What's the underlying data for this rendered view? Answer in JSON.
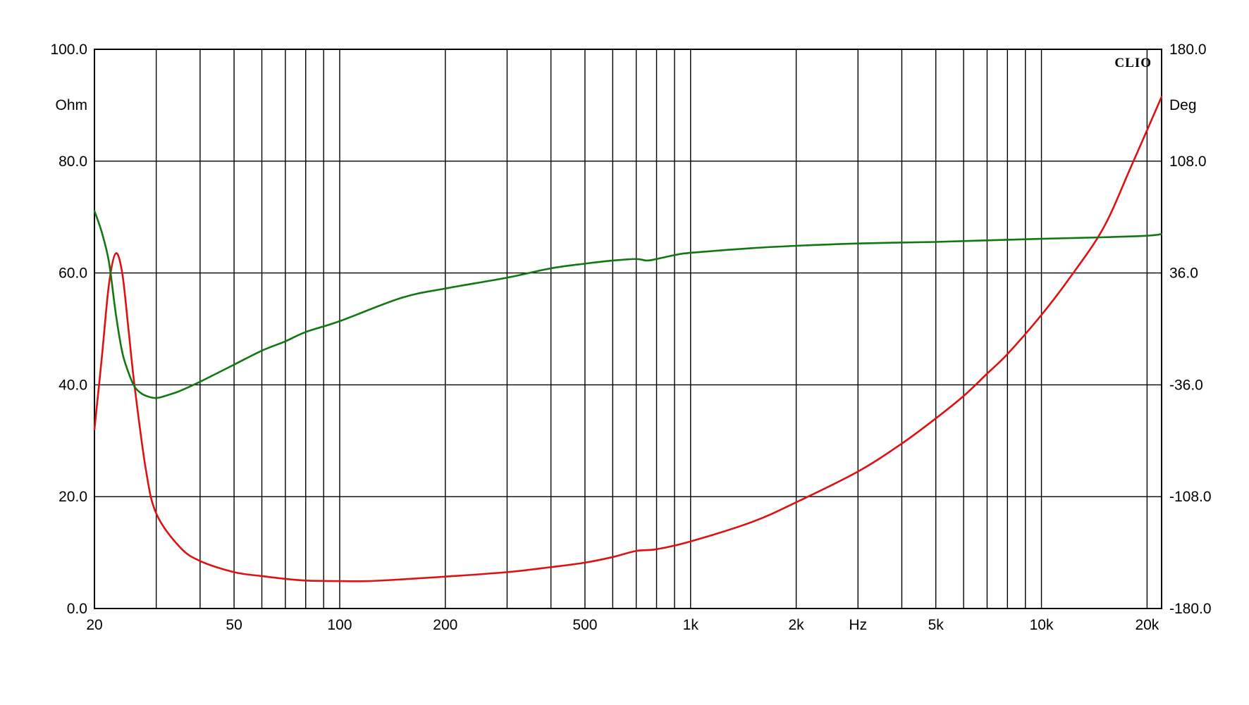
{
  "chart_data": {
    "type": "line",
    "title": "",
    "brand": "CLIO",
    "xlabel": "Hz",
    "x_scale": "log",
    "xlim": [
      20,
      22000
    ],
    "x_tick_labels": [
      {
        "value": 20,
        "label": "20"
      },
      {
        "value": 50,
        "label": "50"
      },
      {
        "value": 100,
        "label": "100"
      },
      {
        "value": 200,
        "label": "200"
      },
      {
        "value": 500,
        "label": "500"
      },
      {
        "value": 1000,
        "label": "1k"
      },
      {
        "value": 2000,
        "label": "2k"
      },
      {
        "value": 5000,
        "label": "5k"
      },
      {
        "value": 10000,
        "label": "10k"
      },
      {
        "value": 20000,
        "label": "20k"
      }
    ],
    "x_gridlines": [
      20,
      30,
      40,
      50,
      60,
      70,
      80,
      90,
      100,
      200,
      300,
      400,
      500,
      600,
      700,
      800,
      900,
      1000,
      2000,
      3000,
      4000,
      5000,
      6000,
      7000,
      8000,
      9000,
      10000,
      20000
    ],
    "y_left": {
      "label": "Ohm",
      "range": [
        0,
        100
      ],
      "ticks": [
        "0.0",
        "20.0",
        "40.0",
        "60.0",
        "80.0",
        "100.0"
      ]
    },
    "y_right": {
      "label": "Deg",
      "range": [
        -180,
        180
      ],
      "ticks": [
        "-180.0",
        "-108.0",
        "-36.0",
        "36.0",
        "108.0",
        "180.0"
      ]
    },
    "grid": true,
    "series": [
      {
        "axis": "left",
        "color": "#dd1111",
        "points": [
          [
            20,
            32
          ],
          [
            21,
            45
          ],
          [
            22,
            58
          ],
          [
            23,
            63.5
          ],
          [
            24,
            60
          ],
          [
            25,
            50
          ],
          [
            26,
            40
          ],
          [
            28,
            25
          ],
          [
            30,
            17
          ],
          [
            35,
            11
          ],
          [
            40,
            8.5
          ],
          [
            50,
            6.5
          ],
          [
            60,
            5.8
          ],
          [
            70,
            5.3
          ],
          [
            80,
            5.0
          ],
          [
            100,
            4.9
          ],
          [
            120,
            4.9
          ],
          [
            150,
            5.2
          ],
          [
            200,
            5.7
          ],
          [
            300,
            6.5
          ],
          [
            400,
            7.4
          ],
          [
            500,
            8.2
          ],
          [
            600,
            9.2
          ],
          [
            700,
            10.3
          ],
          [
            800,
            10.6
          ],
          [
            1000,
            12.0
          ],
          [
            1500,
            15.5
          ],
          [
            2000,
            19.0
          ],
          [
            3000,
            24.5
          ],
          [
            4000,
            29.5
          ],
          [
            5000,
            34.0
          ],
          [
            6000,
            38.0
          ],
          [
            7000,
            42.0
          ],
          [
            8000,
            45.5
          ],
          [
            10000,
            52.5
          ],
          [
            12000,
            59.0
          ],
          [
            15000,
            68.0
          ],
          [
            18000,
            79.0
          ],
          [
            22000,
            91.5
          ]
        ]
      },
      {
        "axis": "right",
        "color": "#117711",
        "points": [
          [
            20,
            76
          ],
          [
            21,
            62
          ],
          [
            22,
            43
          ],
          [
            23,
            10
          ],
          [
            24,
            -15
          ],
          [
            25,
            -28
          ],
          [
            26,
            -37
          ],
          [
            27,
            -41
          ],
          [
            28,
            -43
          ],
          [
            30,
            -44.5
          ],
          [
            33,
            -42
          ],
          [
            35,
            -40
          ],
          [
            40,
            -34
          ],
          [
            50,
            -23
          ],
          [
            60,
            -14
          ],
          [
            70,
            -8
          ],
          [
            80,
            -2
          ],
          [
            100,
            5
          ],
          [
            150,
            20
          ],
          [
            200,
            26
          ],
          [
            300,
            33
          ],
          [
            400,
            39
          ],
          [
            500,
            42
          ],
          [
            600,
            44
          ],
          [
            700,
            45
          ],
          [
            750,
            44
          ],
          [
            800,
            45
          ],
          [
            900,
            47.5
          ],
          [
            1000,
            49
          ],
          [
            1500,
            52
          ],
          [
            2000,
            53.5
          ],
          [
            3000,
            55
          ],
          [
            5000,
            56
          ],
          [
            7000,
            57
          ],
          [
            10000,
            58
          ],
          [
            15000,
            59
          ],
          [
            20000,
            60
          ],
          [
            22000,
            61
          ]
        ]
      }
    ]
  }
}
